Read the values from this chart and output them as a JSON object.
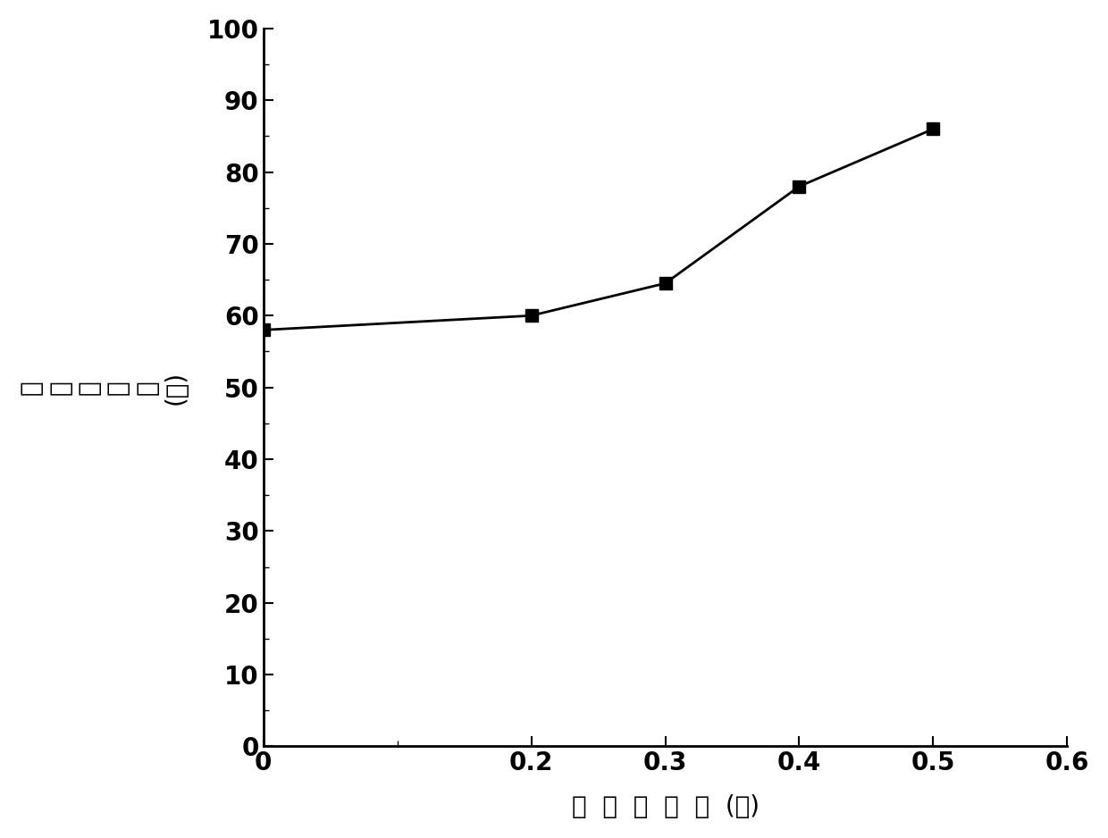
{
  "x": [
    0,
    0.2,
    0.3,
    0.4,
    0.5
  ],
  "y": [
    58,
    60,
    64.5,
    78,
    86
  ],
  "xlim": [
    0,
    0.6
  ],
  "ylim": [
    0,
    100
  ],
  "xticks": [
    0,
    0.2,
    0.3,
    0.4,
    0.5,
    0.6
  ],
  "xtick_labels": [
    "0",
    "0.2",
    "0.3",
    "0.4",
    "0.5",
    "0.6"
  ],
  "yticks": [
    0,
    10,
    20,
    30,
    40,
    50,
    60,
    70,
    80,
    90,
    100
  ],
  "xlabel_chars": [
    "阻",
    "锈",
    "剂",
    "浓",
    "度",
    "(％)"
  ],
  "ylabel_chars": [
    "鈢",
    "筋",
    "际",
    "锈",
    "率",
    "(％)"
  ],
  "line_color": "#000000",
  "marker": "s",
  "marker_color": "#000000",
  "marker_size": 10,
  "linewidth": 2.0,
  "tick_fontsize": 20,
  "label_fontsize": 20,
  "background_color": "#ffffff"
}
